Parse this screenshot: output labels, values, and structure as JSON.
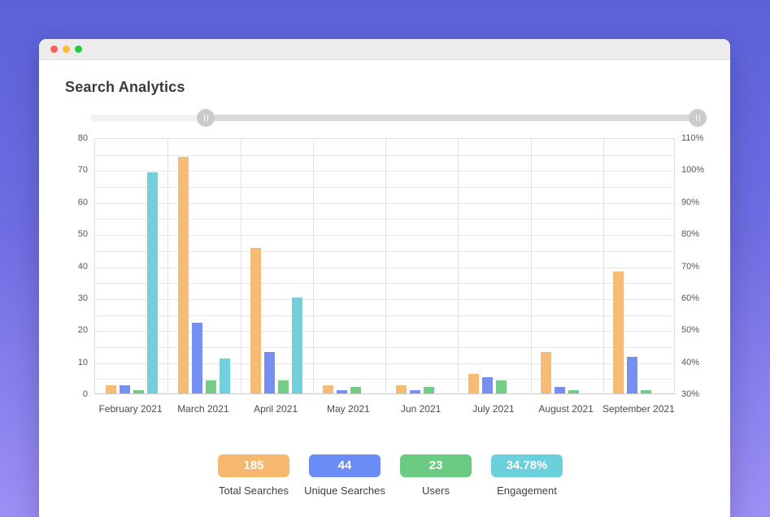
{
  "window": {
    "titlebar": {
      "background": "#ececec",
      "traffic_lights": [
        {
          "name": "close",
          "color": "#ff5f57"
        },
        {
          "name": "minimize",
          "color": "#febc2e"
        },
        {
          "name": "zoom",
          "color": "#28c840"
        }
      ]
    }
  },
  "header": {
    "title": "Search Analytics"
  },
  "slider": {
    "track_color": "#f1f1f1",
    "selected_range_color": "#dbdbdb",
    "handles": [
      {
        "position_pct": 18.8
      },
      {
        "position_pct": 98.7
      }
    ]
  },
  "chart_data": {
    "type": "bar",
    "title": "Search Analytics",
    "categories": [
      "February 2021",
      "March 2021",
      "April 2021",
      "May 2021",
      "Jun 2021",
      "July 2021",
      "August 2021",
      "September 2021"
    ],
    "series": [
      {
        "name": "Total Searches",
        "color": "#f6bb74",
        "axis": "left",
        "values": [
          2.5,
          74,
          45.5,
          2.5,
          2.5,
          6,
          13,
          38
        ]
      },
      {
        "name": "Unique Searches",
        "color": "#7590f0",
        "axis": "left",
        "values": [
          2.5,
          22,
          13,
          1,
          1,
          5,
          2,
          11.5
        ]
      },
      {
        "name": "Users",
        "color": "#74cc87",
        "axis": "left",
        "values": [
          1,
          4,
          4,
          2,
          2,
          4,
          1,
          1
        ]
      },
      {
        "name": "Engagement",
        "color": "#72cfdc",
        "axis": "right",
        "unit": "%",
        "values": [
          99,
          41,
          60,
          null,
          null,
          null,
          null,
          null
        ]
      }
    ],
    "left_axis": {
      "min": 0,
      "max": 80,
      "step": 10,
      "ticks": [
        "80",
        "70",
        "60",
        "50",
        "40",
        "30",
        "20",
        "10",
        "0"
      ]
    },
    "right_axis": {
      "min": 30,
      "max": 110,
      "step": 10,
      "ticks": [
        "110%",
        "100%",
        "90%",
        "80%",
        "70%",
        "60%",
        "50%",
        "40%",
        "30%"
      ]
    },
    "grid": true,
    "legend_position": "none"
  },
  "stats": [
    {
      "value": "185",
      "label": "Total Searches",
      "color": "#f6b76f"
    },
    {
      "value": "44",
      "label": "Unique Searches",
      "color": "#6b8bf5"
    },
    {
      "value": "23",
      "label": "Users",
      "color": "#6bcb83"
    },
    {
      "value": "34.78%",
      "label": "Engagement",
      "color": "#6cd0dc"
    }
  ]
}
